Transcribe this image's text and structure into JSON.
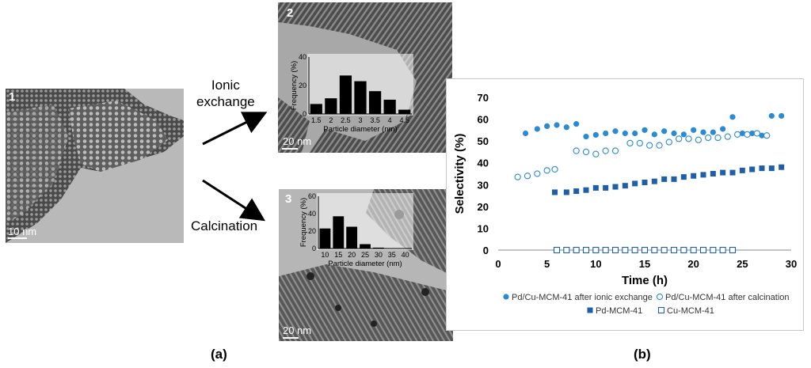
{
  "panel_a": {
    "label": "(a)",
    "image_1": {
      "number": "1",
      "scale": "10 nm"
    },
    "image_2": {
      "number": "2",
      "scale": "20 nm"
    },
    "image_3": {
      "number": "3",
      "scale": "20 nm"
    },
    "arrow_top_label_line1": "Ionic",
    "arrow_top_label_line2": "exchange",
    "arrow_bottom_label": "Calcination"
  },
  "panel_b": {
    "label": "(b)"
  },
  "chart_data": [
    {
      "id": "hist-ionic",
      "type": "bar",
      "xlabel": "Particle diameter (nm)",
      "ylabel": "Frequency (%)",
      "categories": [
        "1.5",
        "2",
        "2.5",
        "3",
        "3.5",
        "4",
        "4.5"
      ],
      "values": [
        7,
        11,
        27,
        23,
        16,
        10,
        3
      ],
      "ylim": [
        0,
        40
      ],
      "yticks": [
        0,
        20,
        40
      ],
      "xticks": [
        "1.5",
        "2",
        "2.5",
        "3",
        "3.5",
        "4",
        "4.5"
      ]
    },
    {
      "id": "hist-calcination",
      "type": "bar",
      "xlabel": "Particle diameter (nm)",
      "ylabel": "Frequency (%)",
      "categories": [
        "10",
        "15",
        "20",
        "25",
        "30",
        "35",
        "40"
      ],
      "values": [
        23,
        37,
        25,
        5,
        1,
        0,
        0
      ],
      "ylim": [
        0,
        60
      ],
      "yticks": [
        0,
        20,
        40,
        60
      ],
      "xticks": [
        "10",
        "15",
        "20",
        "25",
        "30",
        "35",
        "40"
      ]
    },
    {
      "id": "selectivity",
      "type": "scatter",
      "xlabel": "Time (h)",
      "ylabel": "Selectivity (%)",
      "xlim": [
        0,
        30
      ],
      "ylim": [
        0,
        70
      ],
      "xticks": [
        0,
        5,
        10,
        15,
        20,
        25,
        30
      ],
      "yticks": [
        0,
        10,
        20,
        30,
        40,
        50,
        60,
        70
      ],
      "grid": false,
      "legend_position": "bottom",
      "series": [
        {
          "name": "Pd/Cu-MCM-41 after ionic exchange",
          "marker": "filled-circle",
          "color": "#2a8bd4",
          "points": [
            [
              2.8,
              53.5
            ],
            [
              4,
              55.5
            ],
            [
              5,
              56.8
            ],
            [
              6,
              57.3
            ],
            [
              7,
              56.3
            ],
            [
              8,
              57.8
            ],
            [
              9,
              52
            ],
            [
              10,
              52.8
            ],
            [
              11,
              53.5
            ],
            [
              12,
              54.5
            ],
            [
              13,
              53.5
            ],
            [
              14,
              53.5
            ],
            [
              15,
              55
            ],
            [
              16,
              53
            ],
            [
              17,
              54.5
            ],
            [
              18,
              53.5
            ],
            [
              19,
              53
            ],
            [
              20,
              55
            ],
            [
              21,
              54
            ],
            [
              22,
              54
            ],
            [
              23,
              55.5
            ],
            [
              24,
              61
            ],
            [
              25,
              53.5
            ],
            [
              26,
              53.5
            ],
            [
              27,
              52.5
            ],
            [
              28,
              61.5
            ],
            [
              29,
              61.5
            ]
          ]
        },
        {
          "name": "Pd/Cu-MCM-41 after calcination",
          "marker": "open-circle",
          "color": "#2a8bd4",
          "points": [
            [
              2,
              33.5
            ],
            [
              3,
              34
            ],
            [
              4,
              35
            ],
            [
              5,
              36.5
            ],
            [
              5.8,
              37
            ],
            [
              8,
              45.5
            ],
            [
              9,
              45
            ],
            [
              10,
              44
            ],
            [
              11,
              45.5
            ],
            [
              12,
              45.5
            ],
            [
              13.5,
              49
            ],
            [
              14.5,
              49
            ],
            [
              15.5,
              48
            ],
            [
              16.5,
              48
            ],
            [
              17.5,
              49.5
            ],
            [
              18.5,
              51
            ],
            [
              19.5,
              51
            ],
            [
              20.5,
              50.5
            ],
            [
              21.5,
              51.5
            ],
            [
              22.5,
              51.5
            ],
            [
              23.5,
              52
            ],
            [
              24.5,
              53
            ],
            [
              25.5,
              53
            ],
            [
              26.5,
              53.5
            ],
            [
              27.5,
              52.5
            ]
          ]
        },
        {
          "name": "Pd-MCM-41",
          "marker": "filled-square",
          "color": "#1f5fa8",
          "points": [
            [
              5.8,
              26.5
            ],
            [
              7,
              26.5
            ],
            [
              8,
              27
            ],
            [
              9,
              27.5
            ],
            [
              10,
              28.5
            ],
            [
              11,
              28.5
            ],
            [
              12,
              29
            ],
            [
              13,
              29.5
            ],
            [
              14,
              30.5
            ],
            [
              15,
              31
            ],
            [
              16,
              31.5
            ],
            [
              17,
              32.5
            ],
            [
              18,
              32.5
            ],
            [
              19,
              33.5
            ],
            [
              20,
              34
            ],
            [
              21,
              34.5
            ],
            [
              22,
              35
            ],
            [
              23,
              35.5
            ],
            [
              24,
              35.5
            ],
            [
              25,
              36.5
            ],
            [
              26,
              37
            ],
            [
              27,
              37.5
            ],
            [
              28,
              37.5
            ],
            [
              29,
              38
            ]
          ]
        },
        {
          "name": "Cu-MCM-41",
          "marker": "open-square",
          "color": "#1f5fa8",
          "points": [
            [
              6,
              0
            ],
            [
              7,
              0
            ],
            [
              8,
              0
            ],
            [
              9,
              0
            ],
            [
              10,
              0
            ],
            [
              11,
              0
            ],
            [
              12,
              0
            ],
            [
              13,
              0
            ],
            [
              14,
              0
            ],
            [
              15,
              0
            ],
            [
              16,
              0
            ],
            [
              17,
              0
            ],
            [
              18,
              0
            ],
            [
              19,
              0
            ],
            [
              20,
              0
            ],
            [
              21,
              0
            ],
            [
              22,
              0
            ],
            [
              23,
              0
            ],
            [
              24,
              0
            ]
          ]
        }
      ]
    }
  ]
}
